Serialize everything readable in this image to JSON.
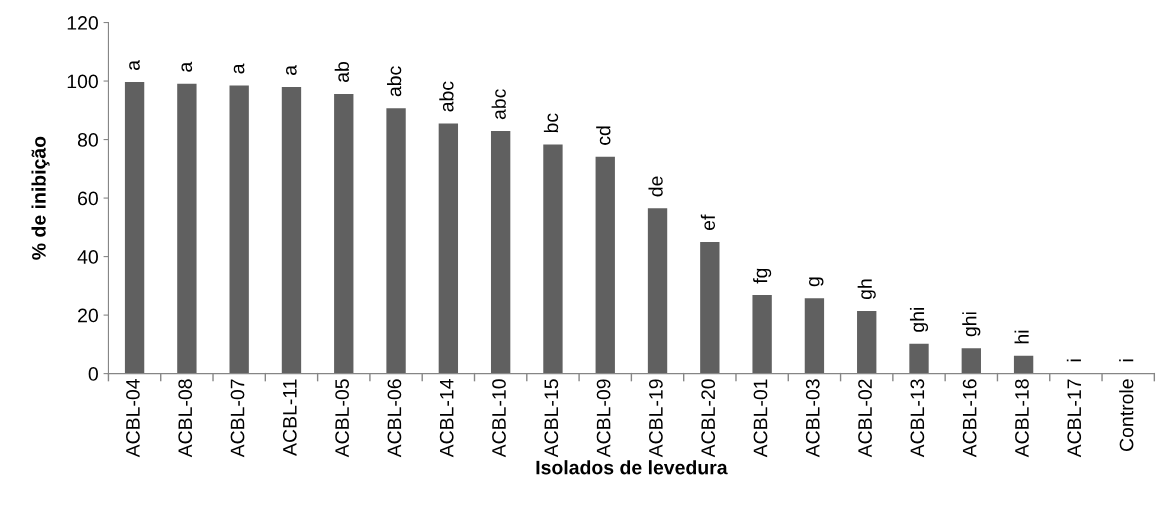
{
  "chart_data": {
    "type": "bar",
    "xlabel": "Isolados de levedura",
    "ylabel": "% de inibição",
    "categories": [
      "ACBL-04",
      "ACBL-08",
      "ACBL-07",
      "ACBL-11",
      "ACBL-05",
      "ACBL-06",
      "ACBL-14",
      "ACBL-10",
      "ACBL-15",
      "ACBL-09",
      "ACBL-19",
      "ACBL-20",
      "ACBL-01",
      "ACBL-03",
      "ACBL-02",
      "ACBL-13",
      "ACBL-16",
      "ACBL-18",
      "ACBL-17",
      "Controle"
    ],
    "values": [
      99.7,
      99.1,
      98.5,
      98.0,
      95.6,
      90.7,
      85.5,
      82.9,
      78.3,
      74.1,
      56.5,
      45.0,
      26.9,
      25.8,
      21.4,
      10.2,
      8.7,
      6.1,
      0,
      0
    ],
    "value_labels": [
      "a",
      "a",
      "a",
      "a",
      "ab",
      "abc",
      "abc",
      "abc",
      "bc",
      "cd",
      "de",
      "ef",
      "fg",
      "g",
      "gh",
      "ghi",
      "ghi",
      "hi",
      "i",
      "i"
    ],
    "color": "#606060",
    "ylim": [
      0,
      120
    ],
    "yticks": [
      0,
      20,
      40,
      60,
      80,
      100,
      120
    ],
    "grid": false,
    "legend": false
  }
}
